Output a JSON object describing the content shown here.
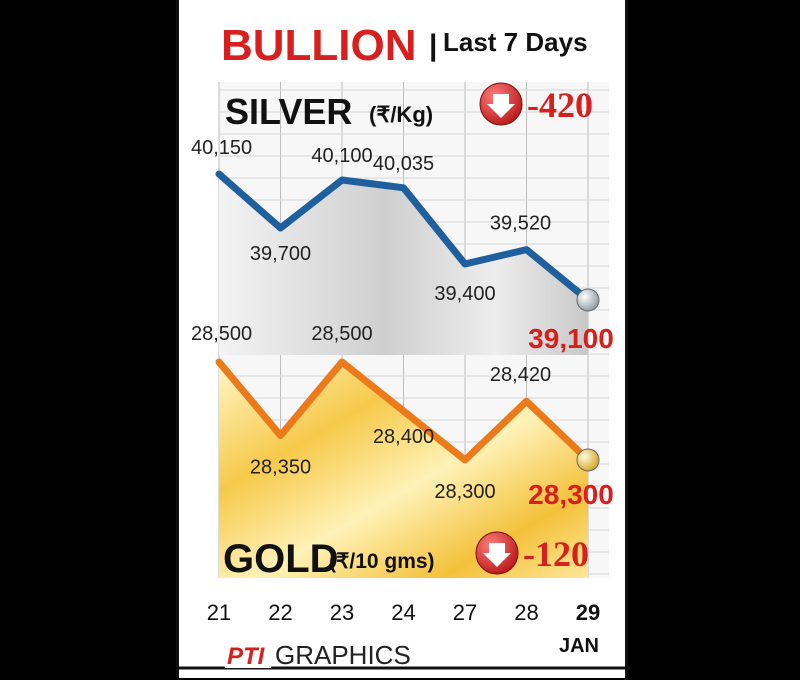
{
  "header": {
    "title": "BULLION",
    "separator": "|",
    "subtitle": "Last 7 Days"
  },
  "silver_box": {
    "name": "SILVER",
    "unit": "(₹/Kg)",
    "change": "-420"
  },
  "gold_box": {
    "name": "GOLD",
    "unit": "(₹/10 gms)",
    "change": "-120"
  },
  "month": "JAN",
  "credit": {
    "logo_text": "PTI",
    "text": "GRAPHICS"
  },
  "colors": {
    "silver": "#1f5f9e",
    "gold": "#ec7a1a",
    "accent": "#d7201e"
  },
  "chart_data": {
    "type": "line",
    "categories": [
      "21",
      "22",
      "23",
      "24",
      "27",
      "28",
      "29"
    ],
    "series": [
      {
        "name": "SILVER",
        "values": [
          40150,
          39700,
          40100,
          40035,
          39400,
          39520,
          39100
        ],
        "labels": [
          "40,150",
          "39,700",
          "40,100",
          "40,035",
          "39,400",
          "39,520",
          "39,100"
        ]
      },
      {
        "name": "GOLD",
        "values": [
          28500,
          28350,
          28500,
          28400,
          28300,
          28420,
          28300
        ],
        "labels": [
          "28,500",
          "28,350",
          "28,500",
          "28,400",
          "28,300",
          "28,420",
          "28,300"
        ]
      }
    ],
    "grid": true
  }
}
